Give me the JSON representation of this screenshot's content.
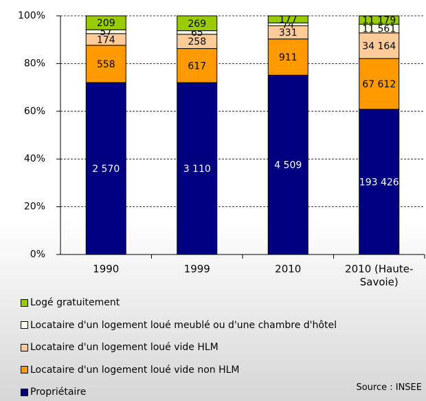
{
  "chart_data": {
    "type": "stacked_bar_percent",
    "categories": [
      "1990",
      "1999",
      "2010",
      "2010 (Haute-Savoie)"
    ],
    "series": [
      {
        "name": "Propriétaire",
        "color": "#000080",
        "values": [
          2570,
          3110,
          4509,
          193426
        ],
        "value_labels": [
          "2 570",
          "3 110",
          "4 509",
          "193 426"
        ]
      },
      {
        "name": "Locataire d'un logement loué vide non HLM",
        "color": "#ff9900",
        "values": [
          558,
          617,
          911,
          67612
        ],
        "value_labels": [
          "558",
          "617",
          "911",
          "67 612"
        ]
      },
      {
        "name": "Locataire d'un logement loué vide HLM",
        "color": "#ffcc99",
        "values": [
          174,
          258,
          331,
          34164
        ],
        "value_labels": [
          "174",
          "258",
          "331",
          "34 164"
        ]
      },
      {
        "name": "Locataire d'un logement loué meublé ou d'une chambre d'hôtel",
        "color": "#ffffee",
        "values": [
          57,
          65,
          74,
          11561
        ],
        "value_labels": [
          "57",
          "65",
          "74",
          "11 561"
        ]
      },
      {
        "name": "Logé gratuitement",
        "color": "#99cc00",
        "values": [
          209,
          269,
          177,
          11179
        ],
        "value_labels": [
          "209",
          "269",
          "177",
          "11 179"
        ]
      }
    ],
    "ylim": [
      0,
      100
    ],
    "yticks": [
      {
        "value": 0,
        "label": "0%"
      },
      {
        "value": 20,
        "label": "20%"
      },
      {
        "value": 40,
        "label": "40%"
      },
      {
        "value": 60,
        "label": "60%"
      },
      {
        "value": 80,
        "label": "80%"
      },
      {
        "value": 100,
        "label": "100%"
      }
    ],
    "grid": true,
    "source": "Source : INSEE"
  }
}
